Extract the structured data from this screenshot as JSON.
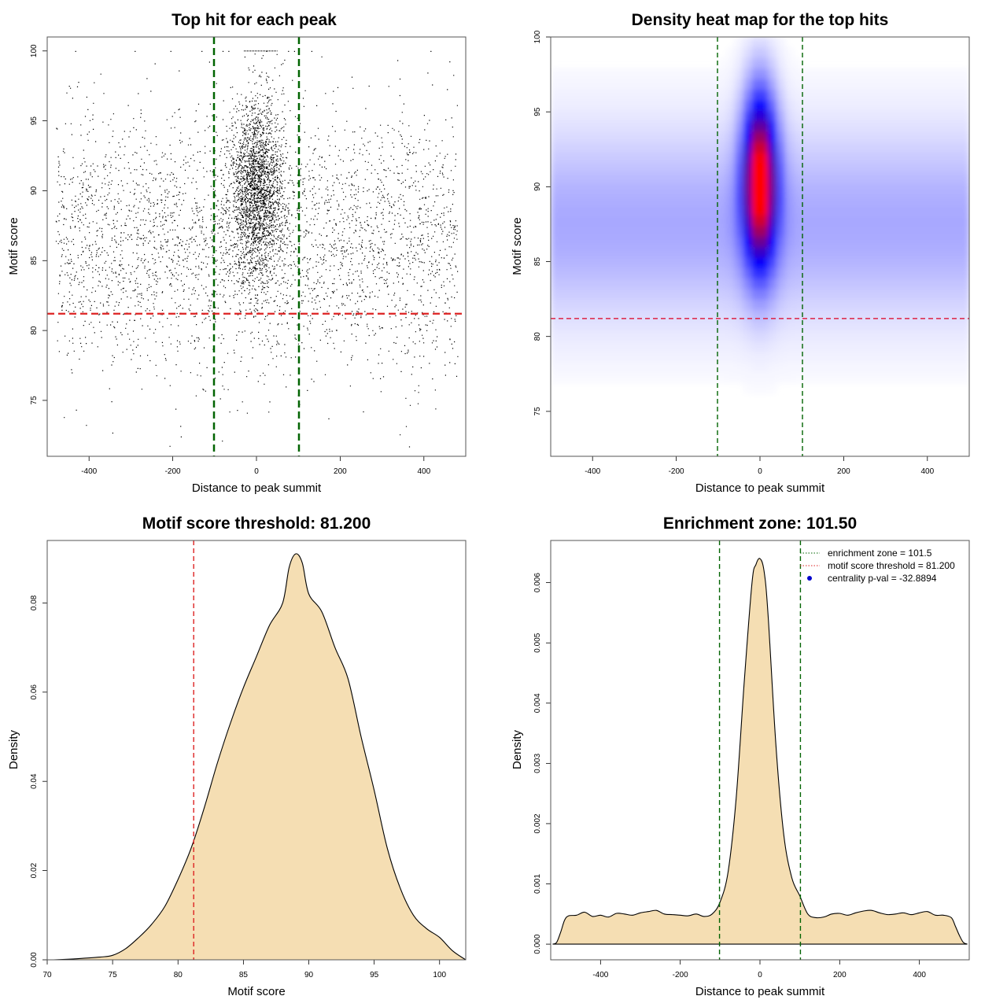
{
  "chart_data": [
    {
      "type": "scatter",
      "title": "Top hit for each peak",
      "xlabel": "Distance to peak summit",
      "ylabel": "Motif score",
      "xlim": [
        -500,
        500
      ],
      "ylim": [
        71,
        101
      ],
      "xticks": [
        -400,
        -200,
        0,
        200,
        400
      ],
      "yticks": [
        75,
        80,
        85,
        90,
        95,
        100
      ],
      "ref_lines": {
        "vertical": [
          -101.5,
          101.5
        ],
        "horizontal": 81.2
      },
      "colors": {
        "points": "#000000",
        "enrichment": "#006400",
        "threshold": "#dd2222"
      },
      "grid": false,
      "points": {
        "background": {
          "count": 3300,
          "x_range": [
            -480,
            480
          ],
          "y_mean": 86.5,
          "y_sd": 4.6
        },
        "central": {
          "count": 2400,
          "x_mean": 0,
          "x_sd": 32,
          "y_mean": 90,
          "y_sd": 3.2
        },
        "ceiling_at_100": {
          "x_range": [
            -30,
            50
          ]
        }
      }
    },
    {
      "type": "heatmap",
      "title": "Density heat map for the top hits",
      "xlabel": "Distance to peak summit",
      "ylabel": "Motif score",
      "xlim": [
        -500,
        500
      ],
      "ylim": [
        72,
        100
      ],
      "xticks": [
        -400,
        -200,
        0,
        200,
        400
      ],
      "yticks": [
        75,
        80,
        85,
        90,
        95,
        100
      ],
      "ref_lines": {
        "vertical": [
          -101.5,
          101.5
        ],
        "horizontal": 81.2
      },
      "colors": {
        "low": "#ffffff",
        "mid": "#0000ff",
        "high": "#ff0000",
        "enrichment": "#006400",
        "threshold": "#dd2244"
      },
      "peak": {
        "x": 0,
        "y": 90.5,
        "x_sd": 28,
        "y_sd": 4.0
      },
      "background_band": {
        "y_center": 87.5,
        "y_sd": 4.5
      }
    },
    {
      "type": "area",
      "title": "Motif score threshold: 81.200",
      "xlabel": "Motif score",
      "ylabel": "Density",
      "xlim": [
        70,
        102
      ],
      "ylim": [
        0,
        0.094
      ],
      "xticks": [
        70,
        75,
        80,
        85,
        90,
        95,
        100
      ],
      "yticks": [
        0.0,
        0.02,
        0.04,
        0.06,
        0.08
      ],
      "ytick_labels": [
        "0.00",
        "0.02",
        "0.04",
        "0.06",
        "0.08"
      ],
      "ref_lines": {
        "vertical": [
          81.2
        ]
      },
      "colors": {
        "fill": "#f5deb3",
        "threshold": "#dd2222"
      },
      "x": [
        70.5,
        72,
        74,
        75,
        76,
        77,
        78,
        79,
        80,
        81,
        82,
        83,
        84,
        85,
        86,
        87,
        88,
        88.5,
        89,
        89.5,
        90,
        91,
        92,
        93,
        94,
        95,
        96,
        97,
        98,
        99,
        100,
        101,
        102
      ],
      "y": [
        0.0,
        0.0002,
        0.0006,
        0.001,
        0.0025,
        0.005,
        0.008,
        0.012,
        0.018,
        0.025,
        0.034,
        0.044,
        0.053,
        0.061,
        0.068,
        0.075,
        0.08,
        0.088,
        0.091,
        0.089,
        0.082,
        0.078,
        0.07,
        0.063,
        0.05,
        0.038,
        0.025,
        0.016,
        0.01,
        0.007,
        0.005,
        0.002,
        0.0
      ]
    },
    {
      "type": "area",
      "title": "Enrichment zone: 101.50",
      "xlabel": "Distance to peak summit",
      "ylabel": "Density",
      "xlim": [
        -525,
        525
      ],
      "ylim": [
        -0.00026,
        0.0067
      ],
      "xticks": [
        -400,
        -200,
        0,
        200,
        400
      ],
      "yticks": [
        0.0,
        0.001,
        0.002,
        0.003,
        0.004,
        0.005,
        0.006
      ],
      "ytick_labels": [
        "0.000",
        "0.001",
        "0.002",
        "0.003",
        "0.004",
        "0.005",
        "0.006"
      ],
      "ref_lines": {
        "vertical": [
          -101.5,
          101.5
        ]
      },
      "colors": {
        "fill": "#f5deb3",
        "enrichment": "#006400"
      },
      "legend": {
        "position": "top-right",
        "entries": [
          {
            "label": "enrichment zone = 101.5",
            "color": "#006400",
            "style": "dotted"
          },
          {
            "label": "motif score threshold = 81.200",
            "color": "#dd2222",
            "style": "dotted"
          },
          {
            "label": "centrality p-val = -32.8894",
            "color": "#0000cc",
            "style": "point"
          }
        ]
      },
      "x": [
        -520,
        -510,
        -500,
        -490,
        -480,
        -460,
        -440,
        -420,
        -400,
        -380,
        -360,
        -340,
        -320,
        -300,
        -280,
        -260,
        -240,
        -220,
        -200,
        -180,
        -160,
        -140,
        -120,
        -100,
        -80,
        -60,
        -40,
        -20,
        -10,
        0,
        10,
        20,
        40,
        60,
        80,
        100,
        120,
        140,
        160,
        180,
        200,
        220,
        240,
        260,
        280,
        300,
        320,
        340,
        360,
        380,
        400,
        420,
        440,
        460,
        480,
        490,
        500,
        510,
        520
      ],
      "y": [
        0.0,
        3e-05,
        0.0002,
        0.0004,
        0.00047,
        0.00048,
        0.00053,
        0.00046,
        0.00048,
        0.00045,
        0.00051,
        0.0005,
        0.00048,
        0.00052,
        0.00054,
        0.00056,
        0.0005,
        0.00049,
        0.00048,
        0.00047,
        0.0005,
        0.00046,
        0.0005,
        0.0007,
        0.0012,
        0.0024,
        0.0043,
        0.006,
        0.0063,
        0.0064,
        0.0062,
        0.0055,
        0.0033,
        0.0018,
        0.0011,
        0.0008,
        0.0005,
        0.00044,
        0.00045,
        0.0005,
        0.00051,
        0.00048,
        0.00052,
        0.00055,
        0.00056,
        0.00052,
        0.00049,
        0.0005,
        0.00052,
        0.00049,
        0.00052,
        0.00054,
        0.00048,
        0.00048,
        0.00044,
        0.0003,
        0.00015,
        3e-05,
        0.0
      ]
    }
  ]
}
